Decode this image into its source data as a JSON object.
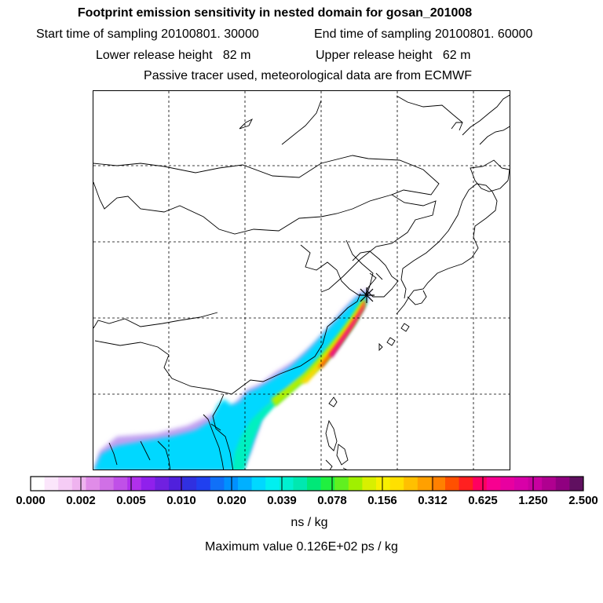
{
  "header": {
    "title": "Footprint emission sensitivity in nested domain for gosan_201008",
    "start_time": "Start time of sampling 20100801. 30000",
    "end_time": "End time of sampling 20100801. 60000",
    "lower_release": "Lower release height   82 m",
    "upper_release": "Upper release height   62 m",
    "tracer_note": "Passive tracer used, meteorological data are from ECMWF"
  },
  "colorbar": {
    "ticks": [
      "0.000",
      "0.002",
      "0.005",
      "0.010",
      "0.020",
      "0.039",
      "0.078",
      "0.156",
      "0.312",
      "0.625",
      "1.250",
      "2.500"
    ],
    "colors": [
      "#ffffff",
      "#fbe6fb",
      "#f5ccf5",
      "#efb3ef",
      "#e08ce8",
      "#d070e6",
      "#c050e8",
      "#b030ec",
      "#9020ec",
      "#7020e0",
      "#5020dc",
      "#3030e0",
      "#2040f0",
      "#1070f8",
      "#0090ff",
      "#00b0ff",
      "#00d8ff",
      "#00f0f0",
      "#00f0d0",
      "#00e8b0",
      "#00e878",
      "#20f040",
      "#60f020",
      "#a0f000",
      "#d8f000",
      "#f8f000",
      "#ffe000",
      "#ffc000",
      "#ffa000",
      "#ff8000",
      "#ff5000",
      "#ff2020",
      "#ff0060",
      "#f80090",
      "#e800a0",
      "#d800a8",
      "#c800a0",
      "#b00090",
      "#900080",
      "#601060"
    ],
    "unit": "ns / kg"
  },
  "max_value": "Maximum value  0.126E+02 ps / kg",
  "map": {
    "receptor": "Gosan",
    "plume_colors": [
      "#c0a0f0",
      "#00d8ff",
      "#00f0c0",
      "#b0f000",
      "#ffd800",
      "#ff5000",
      "#f00090"
    ]
  }
}
